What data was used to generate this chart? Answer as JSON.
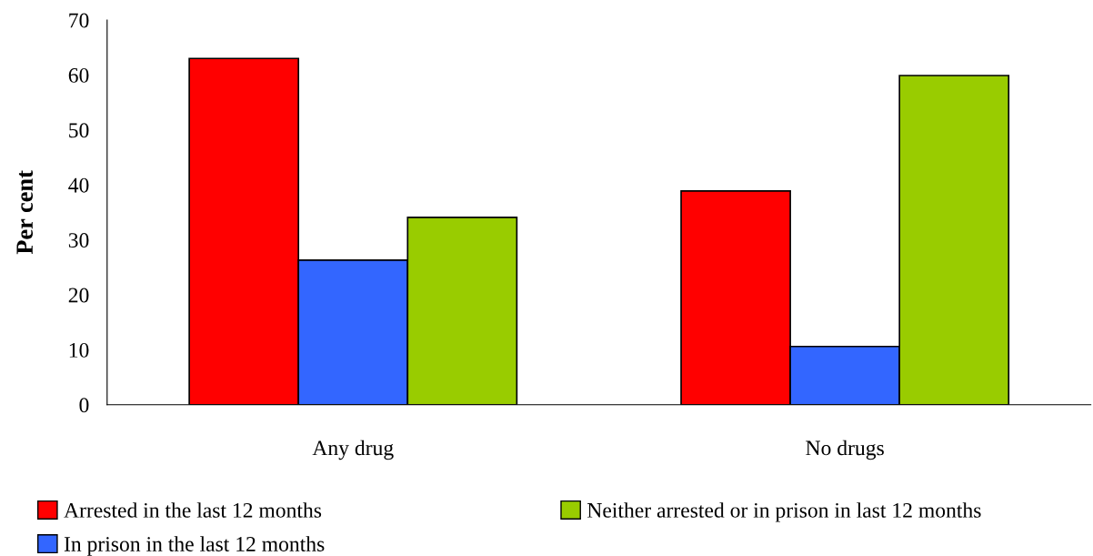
{
  "chart_data": {
    "type": "bar",
    "ylabel": "Per cent",
    "categories": [
      "Any drug",
      "No drugs"
    ],
    "series": [
      {
        "name": "Arrested in the last 12 months",
        "color": "#ff0000",
        "values": [
          63,
          38.9
        ]
      },
      {
        "name": "In prison in the last 12 months",
        "color": "#3366ff",
        "values": [
          26.3,
          10.6
        ]
      },
      {
        "name": "Neither arrested or in prison in last 12 months",
        "color": "#99cc00",
        "values": [
          34.1,
          59.9
        ]
      }
    ],
    "ylim": [
      0,
      70
    ],
    "yticks": [
      0,
      10,
      20,
      30,
      40,
      50,
      60,
      70
    ],
    "grid": false,
    "legend": "bottom"
  }
}
